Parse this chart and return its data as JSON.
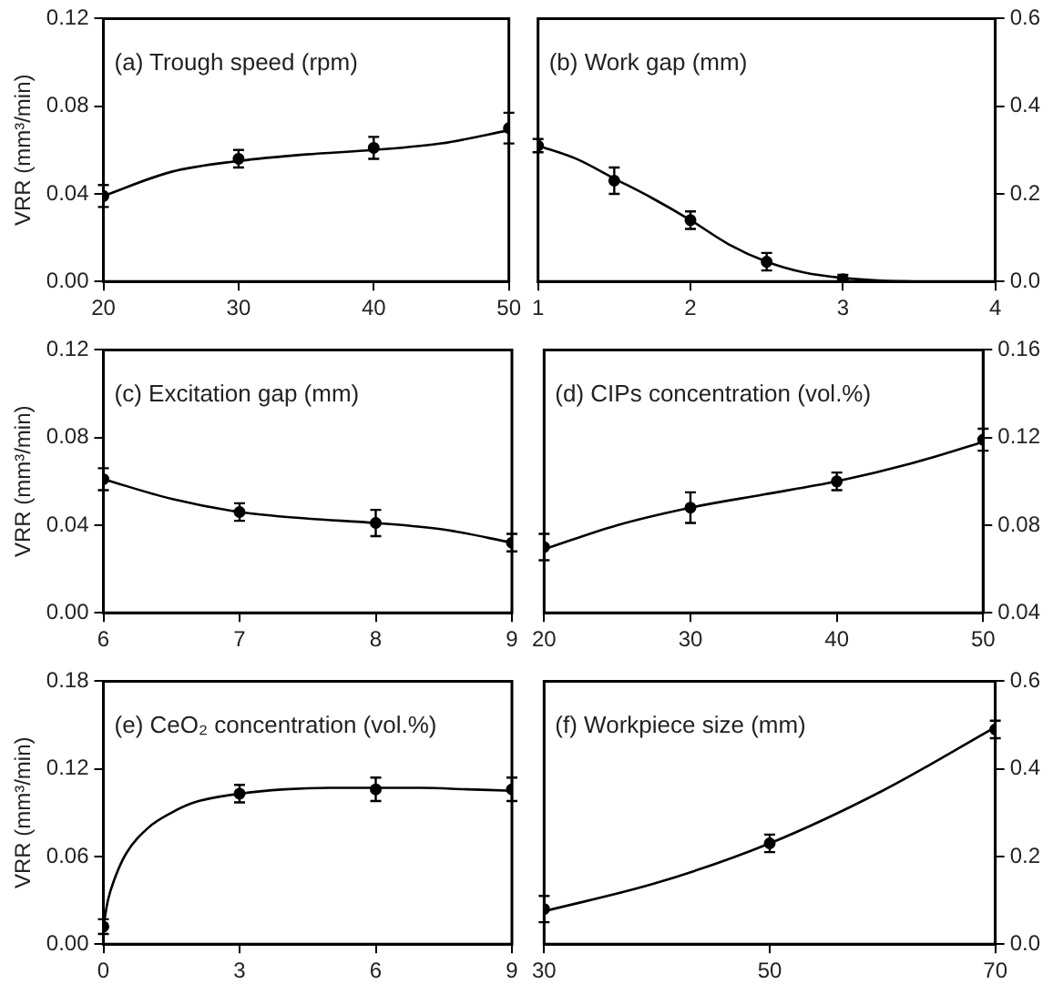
{
  "chart_data": [
    {
      "type": "scatter",
      "title": "(a) Trough speed (rpm)",
      "ylabel": "VRR (mm³/min)",
      "xlim": [
        20,
        50
      ],
      "xticks": [
        20,
        30,
        40,
        50
      ],
      "ylim": [
        0,
        0.12
      ],
      "yticks": [
        {
          "value": 0,
          "label": "0.00"
        },
        {
          "value": 0.04,
          "label": "0.04"
        },
        {
          "value": 0.08,
          "label": "0.08"
        },
        {
          "value": 0.12,
          "label": "0.12"
        }
      ],
      "grid": false,
      "legend": false,
      "series": [
        {
          "type": "scatter",
          "marker": "circle",
          "color": "#000000",
          "x": [
            20,
            30,
            40,
            50
          ],
          "values": [
            0.039,
            0.056,
            0.061,
            0.07
          ],
          "errors": [
            0.005,
            0.004,
            0.005,
            0.007
          ]
        },
        {
          "type": "line",
          "marker": "none",
          "color": "#000000",
          "x": [
            20,
            25,
            30,
            35,
            40,
            45,
            50
          ],
          "values": [
            0.039,
            0.05,
            0.055,
            0.058,
            0.06,
            0.063,
            0.069
          ]
        }
      ]
    },
    {
      "type": "scatter",
      "title": "(b) Work gap (mm)",
      "xlim": [
        1,
        4
      ],
      "xticks": [
        1,
        2,
        3,
        4
      ],
      "y2lim": [
        0,
        0.6
      ],
      "y2ticks": [
        {
          "value": 0,
          "label": "0.0"
        },
        0.2,
        0.4,
        0.6
      ],
      "grid": false,
      "legend": false,
      "series": [
        {
          "type": "scatter",
          "axis": "y2",
          "marker": "circle",
          "color": "#000000",
          "x": [
            1,
            1.5,
            2,
            2.5,
            3
          ],
          "values": [
            0.31,
            0.23,
            0.14,
            0.045,
            0.005
          ],
          "errors": [
            0.015,
            0.03,
            0.02,
            0.02,
            [
              0,
              0.015
            ]
          ]
        },
        {
          "type": "line",
          "axis": "y2",
          "marker": "none",
          "color": "#000000",
          "x": [
            1,
            1.25,
            1.5,
            1.75,
            2,
            2.25,
            2.5,
            2.75,
            3,
            3.25,
            3.5
          ],
          "values": [
            0.31,
            0.28,
            0.235,
            0.19,
            0.14,
            0.085,
            0.045,
            0.02,
            0.008,
            0.002,
            0
          ]
        }
      ]
    },
    {
      "type": "scatter",
      "title": "(c) Excitation gap (mm)",
      "ylabel": "VRR (mm³/min)",
      "xlim": [
        6,
        9
      ],
      "xticks": [
        6,
        7,
        8,
        9
      ],
      "ylim": [
        0,
        0.12
      ],
      "yticks": [
        {
          "value": 0,
          "label": "0.00"
        },
        {
          "value": 0.04,
          "label": "0.04"
        },
        {
          "value": 0.08,
          "label": "0.08"
        },
        {
          "value": 0.12,
          "label": "0.12"
        }
      ],
      "grid": false,
      "legend": false,
      "series": [
        {
          "type": "scatter",
          "marker": "circle",
          "color": "#000000",
          "x": [
            6,
            7,
            8,
            9
          ],
          "values": [
            0.061,
            0.046,
            0.041,
            0.032
          ],
          "errors": [
            0.005,
            0.004,
            0.006,
            0.004
          ]
        },
        {
          "type": "line",
          "marker": "none",
          "color": "#000000",
          "x": [
            6,
            6.5,
            7,
            7.5,
            8,
            8.5,
            9
          ],
          "values": [
            0.061,
            0.052,
            0.046,
            0.043,
            0.041,
            0.038,
            0.032
          ]
        }
      ]
    },
    {
      "type": "scatter",
      "title": "(d) CIPs concentration (vol.%)",
      "xlim": [
        20,
        50
      ],
      "xticks": [
        20,
        30,
        40,
        50
      ],
      "y2lim": [
        0.04,
        0.16
      ],
      "y2ticks": [
        0.04,
        0.08,
        0.12,
        0.16
      ],
      "grid": false,
      "legend": false,
      "series": [
        {
          "type": "scatter",
          "axis": "y2",
          "marker": "circle",
          "color": "#000000",
          "x": [
            20,
            30,
            40,
            50
          ],
          "values": [
            0.07,
            0.088,
            0.1,
            0.119
          ],
          "errors": [
            0.006,
            0.007,
            0.004,
            0.005
          ]
        },
        {
          "type": "line",
          "axis": "y2",
          "marker": "none",
          "color": "#000000",
          "x": [
            20,
            25,
            30,
            35,
            40,
            45,
            50
          ],
          "values": [
            0.069,
            0.08,
            0.088,
            0.094,
            0.1,
            0.108,
            0.118
          ]
        }
      ]
    },
    {
      "type": "scatter",
      "title": "(e) CeO₂ concentration (vol.%)",
      "ylabel": "VRR (mm³/min)",
      "xlim": [
        0,
        9
      ],
      "xticks": [
        0,
        3,
        6,
        9
      ],
      "ylim": [
        0,
        0.18
      ],
      "yticks": [
        {
          "value": 0,
          "label": "0.00"
        },
        {
          "value": 0.06,
          "label": "0.06"
        },
        {
          "value": 0.12,
          "label": "0.12"
        },
        {
          "value": 0.18,
          "label": "0.18"
        }
      ],
      "grid": false,
      "legend": false,
      "series": [
        {
          "type": "scatter",
          "marker": "circle",
          "color": "#000000",
          "x": [
            0,
            3,
            6,
            9
          ],
          "values": [
            0.012,
            0.103,
            0.106,
            0.106
          ],
          "errors": [
            0.005,
            0.006,
            0.008,
            0.008
          ]
        },
        {
          "type": "line",
          "marker": "none",
          "color": "#000000",
          "x": [
            0,
            0.1,
            0.25,
            0.5,
            1,
            1.5,
            2,
            3,
            4,
            5,
            6,
            7,
            8,
            9
          ],
          "values": [
            0.012,
            0.03,
            0.045,
            0.062,
            0.08,
            0.09,
            0.097,
            0.103,
            0.106,
            0.107,
            0.107,
            0.107,
            0.106,
            0.105
          ]
        }
      ]
    },
    {
      "type": "scatter",
      "title": "(f) Workpiece size (mm)",
      "xlim": [
        30,
        70
      ],
      "xticks": [
        30,
        50,
        70
      ],
      "y2lim": [
        0,
        0.6
      ],
      "y2ticks": [
        {
          "value": 0,
          "label": "0.0"
        },
        0.2,
        0.4,
        0.6
      ],
      "grid": false,
      "legend": false,
      "series": [
        {
          "type": "scatter",
          "axis": "y2",
          "marker": "circle",
          "color": "#000000",
          "x": [
            30,
            50,
            70
          ],
          "values": [
            0.08,
            0.23,
            0.49
          ],
          "errors": [
            0.03,
            0.02,
            0.02
          ]
        },
        {
          "type": "line",
          "axis": "y2",
          "marker": "none",
          "color": "#000000",
          "x": [
            30,
            40,
            50,
            60,
            70
          ],
          "values": [
            0.075,
            0.14,
            0.23,
            0.35,
            0.495
          ]
        }
      ]
    }
  ]
}
